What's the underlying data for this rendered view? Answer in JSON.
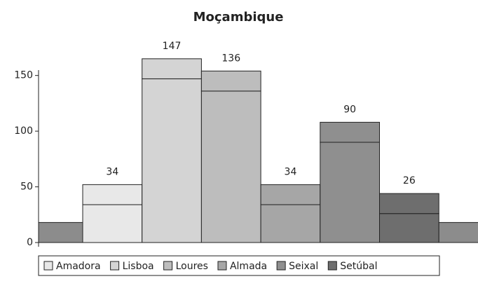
{
  "chart_data": {
    "type": "stacked_bar",
    "title": "Moçambique",
    "categories": [
      null,
      "Amadora",
      "Lisboa",
      "Loures",
      "Almada",
      "Seixal",
      "Setúbal",
      null
    ],
    "colors": [
      "#8c8c8c",
      "#e8e8e8",
      "#d4d4d4",
      "#bdbdbd",
      "#a6a6a6",
      "#8f8f8f",
      "#6e6e6e",
      "#8c8c8c"
    ],
    "series": [
      {
        "values": [
          18,
          34,
          147,
          136,
          34,
          90,
          26,
          18
        ]
      },
      {
        "values": [
          null,
          18,
          18,
          18,
          18,
          18,
          18,
          null
        ]
      }
    ],
    "ylim": [
      0,
      180
    ],
    "yticks": [
      0,
      50,
      100,
      150
    ],
    "legend": "bottom"
  }
}
